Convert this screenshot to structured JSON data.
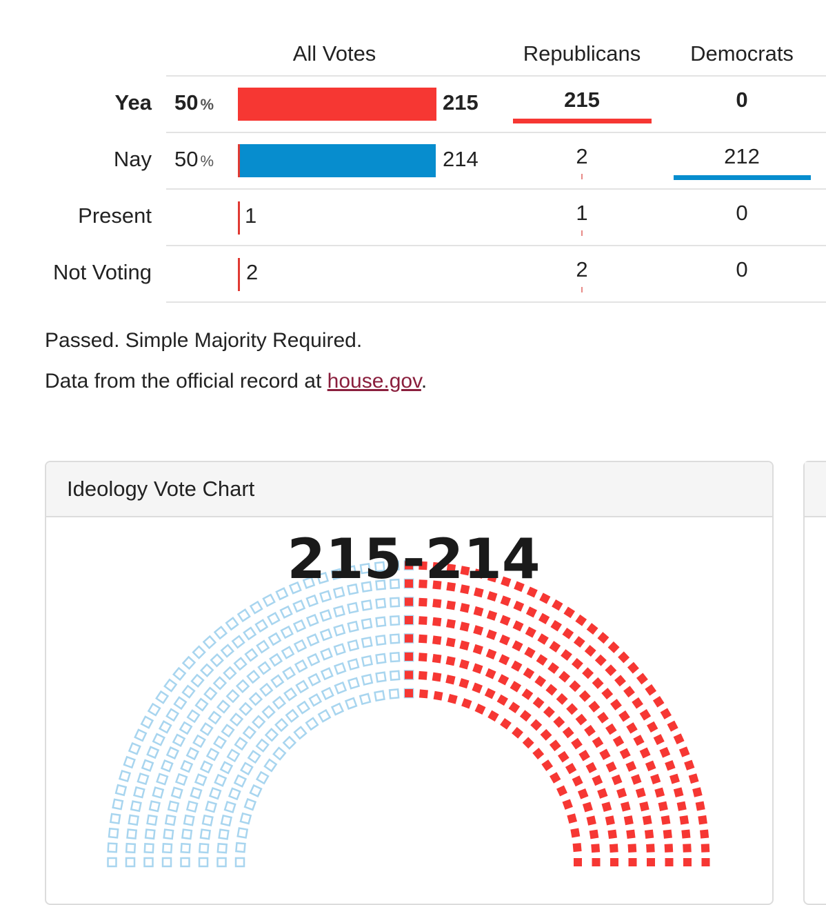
{
  "table": {
    "headers": {
      "all_votes": "All Votes",
      "republicans": "Republicans",
      "democrats": "Democrats"
    },
    "rows": [
      {
        "label": "Yea",
        "pct": "50",
        "pct_sign": "%",
        "total": "215",
        "republicans": "215",
        "democrats": "0",
        "bold": true,
        "bar_color": "#f63733"
      },
      {
        "label": "Nay",
        "pct": "50",
        "pct_sign": "%",
        "total": "214",
        "republicans": "2",
        "democrats": "212",
        "bold": false,
        "bar_color": "#078dce"
      },
      {
        "label": "Present",
        "pct": "",
        "pct_sign": "",
        "total": "1",
        "republicans": "1",
        "democrats": "0",
        "bold": false
      },
      {
        "label": "Not Voting",
        "pct": "",
        "pct_sign": "",
        "total": "2",
        "republicans": "2",
        "democrats": "0",
        "bold": false
      }
    ]
  },
  "result_text": "Passed. Simple Majority Required.",
  "source": {
    "prefix": "Data from the official record at ",
    "link_text": "house.gov",
    "suffix": "."
  },
  "panel": {
    "title": "Ideology Vote Chart"
  },
  "chart_data": {
    "type": "seat-arc",
    "title": "215-214",
    "series": [
      {
        "name": "Yea",
        "value": 215,
        "color": "#f63733"
      },
      {
        "name": "Nay",
        "value": 214,
        "color": "#a8d5ef"
      }
    ]
  },
  "colors": {
    "republican": "#f63733",
    "democrat": "#078dce",
    "link": "#8a1f3d"
  }
}
